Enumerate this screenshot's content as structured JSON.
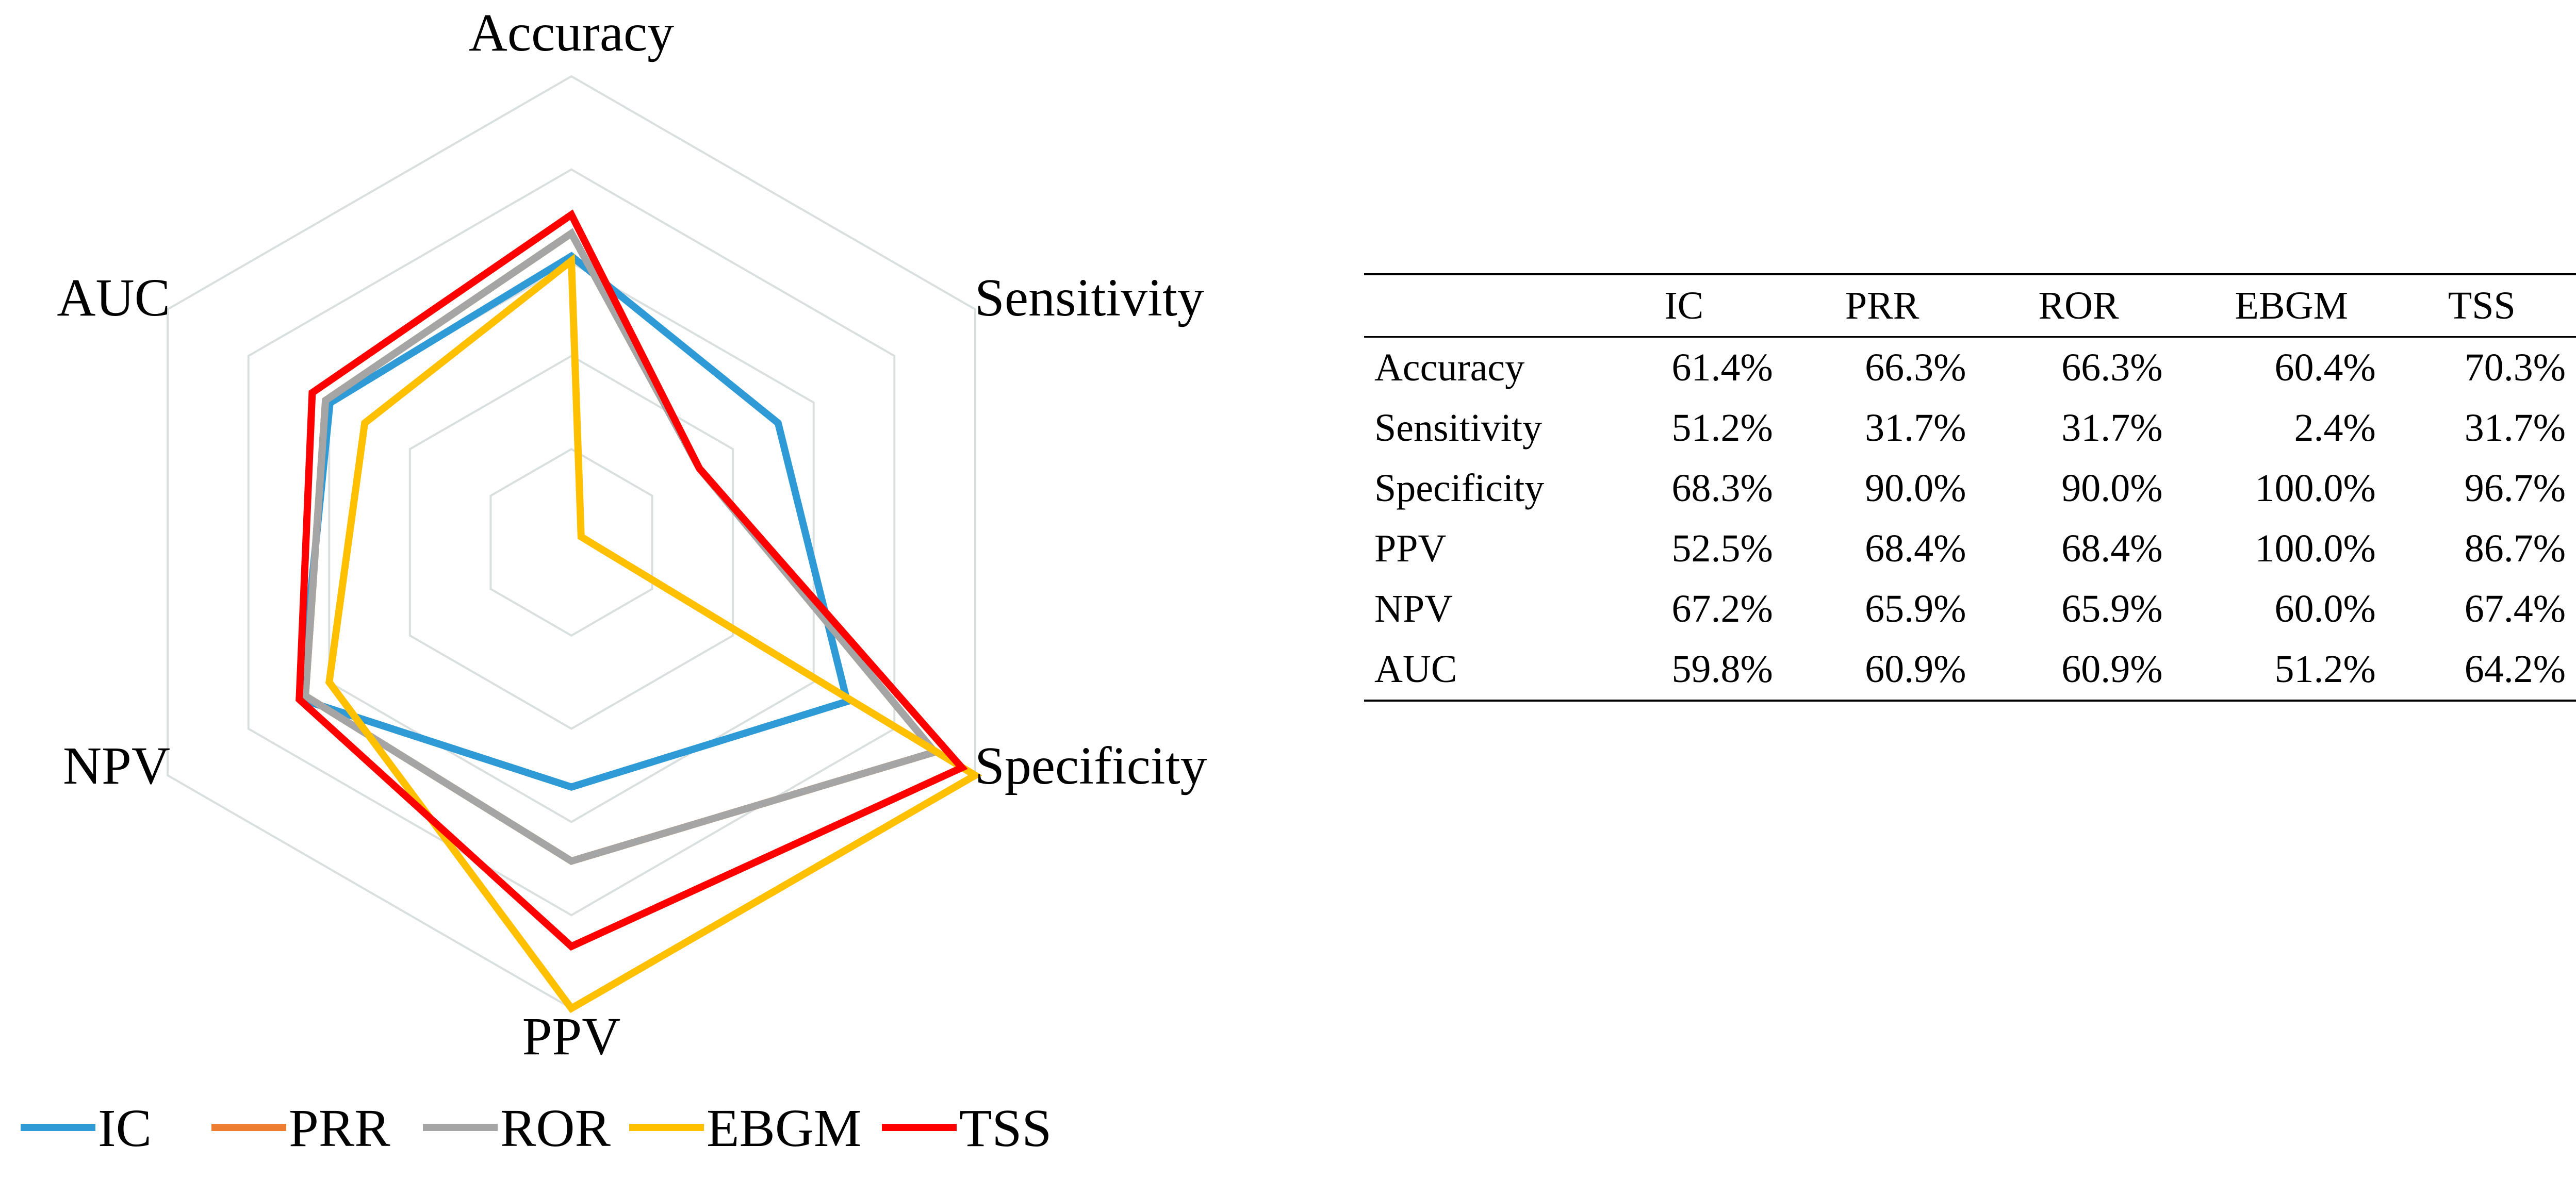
{
  "chart_data": [
    {
      "type": "radar",
      "axes": [
        "Accuracy",
        "Sensitivity",
        "Specificity",
        "PPV",
        "NPV",
        "AUC"
      ],
      "range": [
        0,
        100
      ],
      "grid_levels": [
        20,
        40,
        60,
        80,
        100
      ],
      "unit": "%",
      "series": [
        {
          "name": "IC",
          "color": "#2E9BD6",
          "values": [
            61.4,
            51.2,
            68.3,
            52.5,
            67.2,
            59.8
          ]
        },
        {
          "name": "PRR",
          "color": "#ED7D31",
          "values": [
            66.3,
            31.7,
            90.0,
            68.4,
            65.9,
            60.9
          ]
        },
        {
          "name": "ROR",
          "color": "#A5A5A5",
          "values": [
            66.3,
            31.7,
            90.0,
            68.4,
            65.9,
            60.9
          ]
        },
        {
          "name": "EBGM",
          "color": "#FFC000",
          "values": [
            60.4,
            2.4,
            100.0,
            100.0,
            60.0,
            51.2
          ]
        },
        {
          "name": "TSS",
          "color": "#FF0000",
          "values": [
            70.3,
            31.7,
            96.7,
            86.7,
            67.4,
            64.2
          ]
        }
      ],
      "legend_placement": "bottom"
    },
    {
      "type": "table",
      "columns": [
        "IC",
        "PRR",
        "ROR",
        "EBGM",
        "TSS"
      ],
      "rows": [
        {
          "label": "Accuracy",
          "values": [
            "61.4%",
            "66.3%",
            "66.3%",
            "60.4%",
            "70.3%"
          ]
        },
        {
          "label": "Sensitivity",
          "values": [
            "51.2%",
            "31.7%",
            "31.7%",
            "2.4%",
            "31.7%"
          ]
        },
        {
          "label": "Specificity",
          "values": [
            "68.3%",
            "90.0%",
            "90.0%",
            "100.0%",
            "96.7%"
          ]
        },
        {
          "label": "PPV",
          "values": [
            "52.5%",
            "68.4%",
            "68.4%",
            "100.0%",
            "86.7%"
          ]
        },
        {
          "label": "NPV",
          "values": [
            "67.2%",
            "65.9%",
            "65.9%",
            "60.0%",
            "67.4%"
          ]
        },
        {
          "label": "AUC",
          "values": [
            "59.8%",
            "60.9%",
            "60.9%",
            "51.2%",
            "64.2%"
          ]
        }
      ]
    }
  ]
}
